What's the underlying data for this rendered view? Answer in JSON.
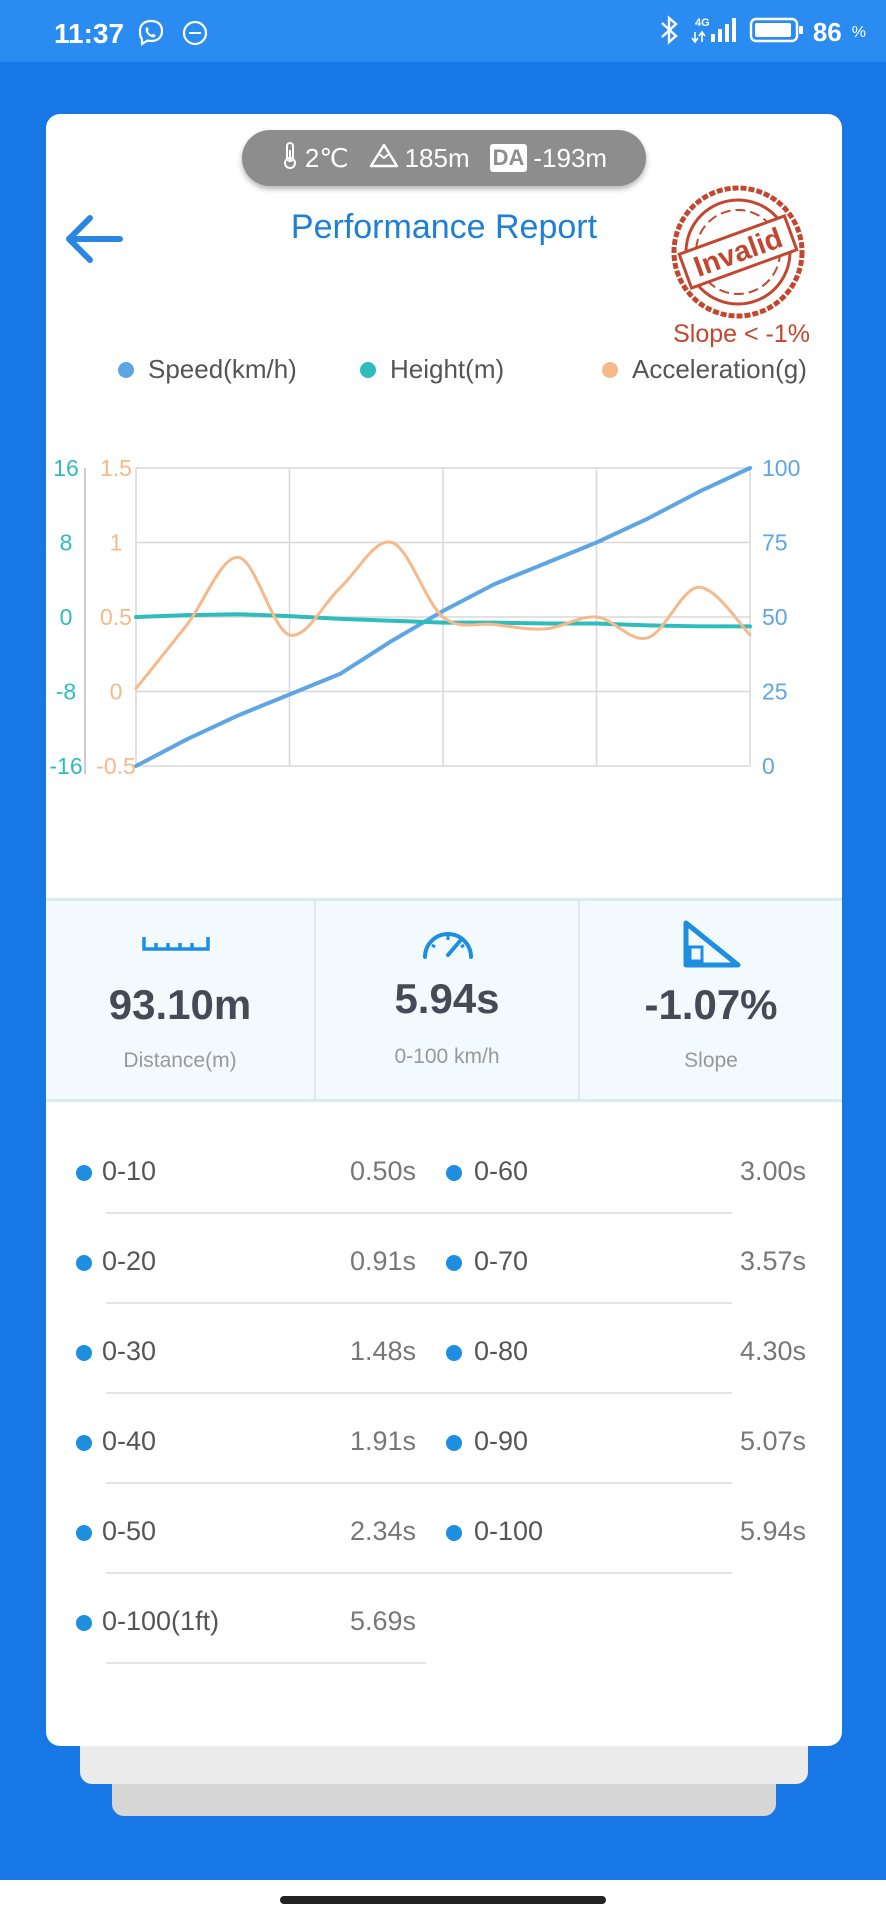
{
  "status_bar": {
    "time": "11:37",
    "battery": "86",
    "battery_unit": "%",
    "network": "4G"
  },
  "env": {
    "temperature": "2℃",
    "altitude": "185m",
    "da_label": "DA",
    "density_altitude": "-193m"
  },
  "header": {
    "title": "Performance Report",
    "stamp_text": "Invalid",
    "slope_warning": "Slope < -1%"
  },
  "legend": [
    {
      "label": "Speed(km/h)",
      "color": "#5ea6e3"
    },
    {
      "label": "Height(m)",
      "color": "#2fbcbc"
    },
    {
      "label": "Acceleration(g)",
      "color": "#f5b98a"
    }
  ],
  "chart_data": {
    "type": "line",
    "x": [
      0,
      0.5,
      1,
      1.5,
      2,
      2.5,
      3,
      3.5,
      4,
      4.5,
      5,
      5.5,
      6
    ],
    "xlabel": "",
    "series": [
      {
        "name": "Speed(km/h)",
        "axis": "right",
        "ylim": [
          0,
          100
        ],
        "ticks": [
          "100",
          "75",
          "50",
          "25",
          "0"
        ],
        "values": [
          0,
          9,
          17,
          24,
          31,
          42,
          52,
          61,
          68,
          75,
          83,
          92,
          100
        ]
      },
      {
        "name": "Height(m)",
        "axis": "left-outer",
        "ylim": [
          -16,
          16
        ],
        "ticks": [
          "16",
          "8",
          "0",
          "-8",
          "-16"
        ],
        "values": [
          0,
          0.2,
          0.3,
          0.1,
          -0.2,
          -0.4,
          -0.6,
          -0.6,
          -0.7,
          -0.7,
          -0.9,
          -1.0,
          -1.0
        ]
      },
      {
        "name": "Acceleration(g)",
        "axis": "left-inner",
        "ylim": [
          -0.5,
          1.5
        ],
        "ticks": [
          "1.5",
          "1",
          "0.5",
          "0",
          "-0.5"
        ],
        "values": [
          0.02,
          0.45,
          0.9,
          0.38,
          0.7,
          1.0,
          0.5,
          0.45,
          0.42,
          0.5,
          0.36,
          0.7,
          0.38
        ]
      }
    ],
    "grid": true
  },
  "stats": {
    "distance_value": "93.10m",
    "distance_label": "Distance(m)",
    "time_value": "5.94s",
    "time_label": "0-100 km/h",
    "slope_value": "-1.07%",
    "slope_label": "Slope"
  },
  "times": {
    "left": [
      {
        "label": "0-10",
        "value": "0.50s"
      },
      {
        "label": "0-20",
        "value": "0.91s"
      },
      {
        "label": "0-30",
        "value": "1.48s"
      },
      {
        "label": "0-40",
        "value": "1.91s"
      },
      {
        "label": "0-50",
        "value": "2.34s"
      },
      {
        "label": "0-100(1ft)",
        "value": "5.69s"
      }
    ],
    "right": [
      {
        "label": "0-60",
        "value": "3.00s"
      },
      {
        "label": "0-70",
        "value": "3.57s"
      },
      {
        "label": "0-80",
        "value": "4.30s"
      },
      {
        "label": "0-90",
        "value": "5.07s"
      },
      {
        "label": "0-100",
        "value": "5.94s"
      }
    ]
  }
}
